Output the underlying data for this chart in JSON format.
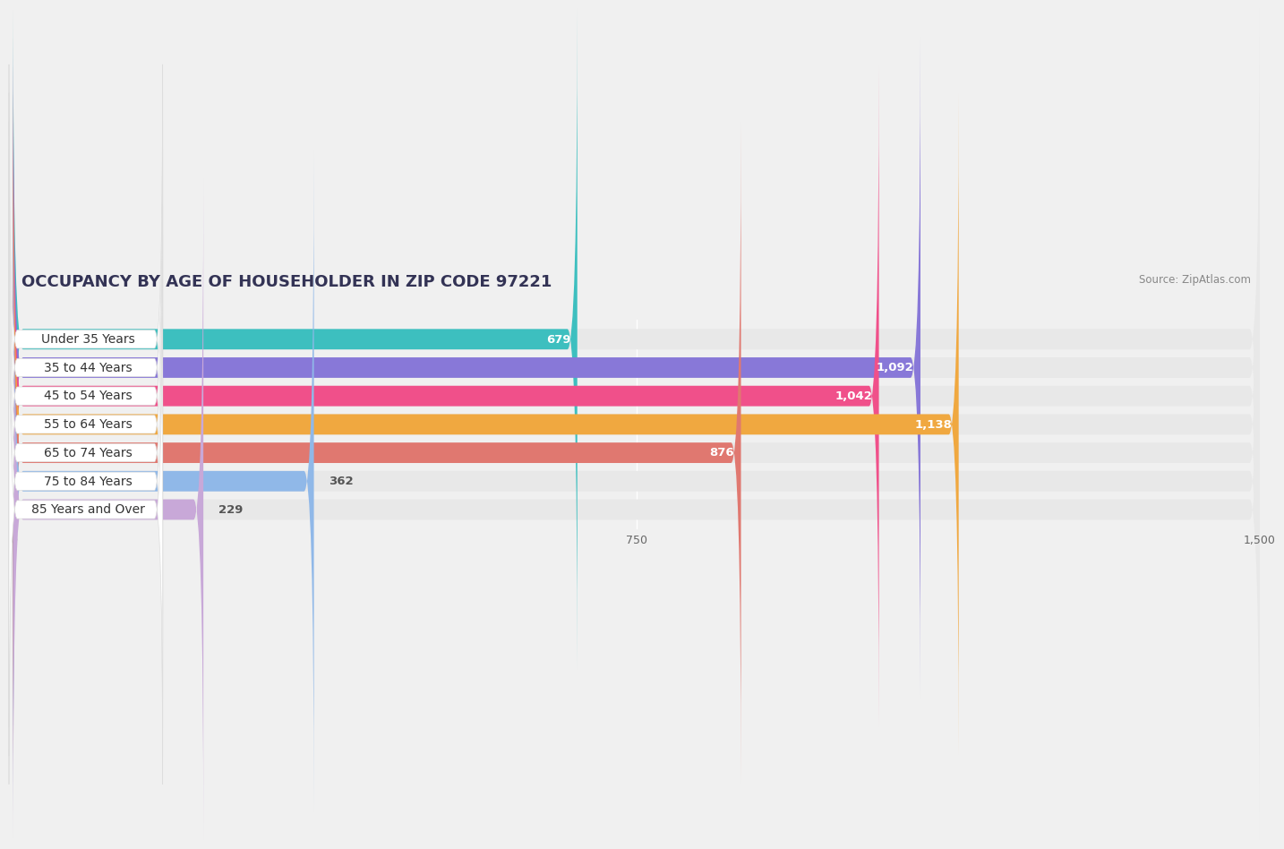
{
  "title": "OCCUPANCY BY AGE OF HOUSEHOLDER IN ZIP CODE 97221",
  "source": "Source: ZipAtlas.com",
  "categories": [
    "Under 35 Years",
    "35 to 44 Years",
    "45 to 54 Years",
    "55 to 64 Years",
    "65 to 74 Years",
    "75 to 84 Years",
    "85 Years and Over"
  ],
  "values": [
    679,
    1092,
    1042,
    1138,
    876,
    362,
    229
  ],
  "bar_colors": [
    "#3dbfbf",
    "#8878d8",
    "#f0508a",
    "#f0a840",
    "#e07870",
    "#90b8e8",
    "#c8a8d8"
  ],
  "bar_bg_colors": [
    "#eeeeee",
    "#eeeeee",
    "#eeeeee",
    "#eeeeee",
    "#eeeeee",
    "#eeeeee",
    "#eeeeee"
  ],
  "xlim": [
    0,
    1500
  ],
  "xticks": [
    0,
    750,
    1500
  ],
  "page_bg": "#f0f0f0",
  "bar_area_bg": "#ffffff",
  "bar_height": 0.72,
  "bar_gap": 0.28,
  "value_fontsize": 9.5,
  "label_fontsize": 10,
  "title_fontsize": 13,
  "value_threshold": 500
}
